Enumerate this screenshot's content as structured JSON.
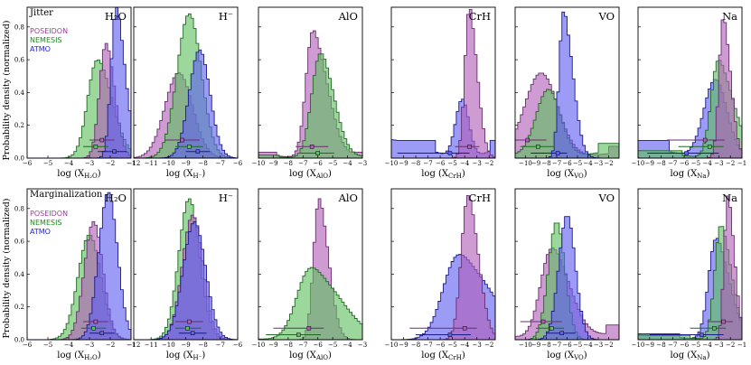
{
  "figure": {
    "ylabel": "Probability density (normalized)",
    "row_labels": [
      "Jitter",
      "Marginalization"
    ],
    "legend": [
      {
        "name": "POSEIDON",
        "color": "#9b3f9b"
      },
      {
        "name": "NEMESIS",
        "color": "#1b8a1b"
      },
      {
        "name": "ATMO",
        "color": "#2323cc"
      }
    ],
    "yticks": [
      "0.0",
      "0.2",
      "0.4",
      "0.6",
      "0.8"
    ],
    "colors": {
      "POSEIDON": "#b060b8",
      "NEMESIS": "#5fbf5f",
      "ATMO": "#5f5ff0",
      "POSEIDON_stroke": "#6a2c6e",
      "NEMESIS_stroke": "#1e6a1e",
      "ATMO_stroke": "#1a1a8a"
    }
  },
  "chart_data": [
    {
      "type": "histogram",
      "row": "Jitter",
      "title": "H₂O",
      "xlabel": "log (X",
      "xsub": "H₂O",
      "xlim": [
        -6,
        -1
      ],
      "xticks": [
        "−6",
        "−5",
        "−4",
        "−3",
        "−2",
        "−1"
      ],
      "series": [
        {
          "name": "NEMESIS",
          "mu": -2.6,
          "sigma": 0.55,
          "skew": -0.4,
          "peak": 0.6,
          "floor": 0
        },
        {
          "name": "POSEIDON",
          "mu": -2.2,
          "sigma": 0.35,
          "skew": -0.3,
          "peak": 0.7,
          "floor": 0
        },
        {
          "name": "ATMO",
          "mu": -1.7,
          "sigma": 0.3,
          "skew": -0.5,
          "peak": 0.92,
          "floor": 0
        }
      ],
      "errorbars": [
        {
          "name": "POSEIDON",
          "x": -2.4,
          "lo": -3.0,
          "hi": -1.8,
          "y": 0.11
        },
        {
          "name": "NEMESIS",
          "x": -2.7,
          "lo": -3.3,
          "hi": -2.1,
          "y": 0.07
        },
        {
          "name": "ATMO",
          "x": -1.8,
          "lo": -2.6,
          "hi": -1.2,
          "y": 0.04
        }
      ]
    },
    {
      "type": "histogram",
      "row": "Jitter",
      "title": "H⁻",
      "xlabel": "log (X",
      "xsub": "H⁻",
      "xlim": [
        -12,
        -6
      ],
      "xticks": [
        "−12",
        "−11",
        "−10",
        "−9",
        "−8",
        "−7",
        "−6"
      ],
      "series": [
        {
          "name": "POSEIDON",
          "mu": -9.4,
          "sigma": 0.8,
          "skew": 0,
          "peak": 0.52,
          "floor": 0
        },
        {
          "name": "NEMESIS",
          "mu": -8.8,
          "sigma": 0.7,
          "skew": 0,
          "peak": 0.88,
          "floor": 0
        },
        {
          "name": "ATMO",
          "mu": -8.2,
          "sigma": 0.6,
          "skew": 0,
          "peak": 0.66,
          "floor": 0
        }
      ],
      "errorbars": [
        {
          "name": "POSEIDON",
          "x": -9.2,
          "lo": -10.2,
          "hi": -8.2,
          "y": 0.11
        },
        {
          "name": "NEMESIS",
          "x": -8.8,
          "lo": -9.6,
          "hi": -8.0,
          "y": 0.07
        },
        {
          "name": "ATMO",
          "x": -8.3,
          "lo": -9.0,
          "hi": -7.6,
          "y": 0.04
        }
      ]
    },
    {
      "type": "histogram",
      "row": "Jitter",
      "title": "AlO",
      "xlabel": "log (X",
      "xsub": "AlO",
      "xlim": [
        -10,
        -3
      ],
      "xticks": [
        "−10",
        "−9",
        "−8",
        "−7",
        "−6",
        "−5",
        "−4",
        "−3"
      ],
      "series": [
        {
          "name": "POSEIDON",
          "mu": -6.3,
          "sigma": 0.6,
          "skew": -0.6,
          "peak": 0.78,
          "floor": 0.04
        },
        {
          "name": "NEMESIS",
          "mu": -5.8,
          "sigma": 0.7,
          "skew": -0.4,
          "peak": 0.64,
          "floor": 0.02
        }
      ],
      "errorbars": [
        {
          "name": "POSEIDON",
          "x": -6.4,
          "lo": -7.5,
          "hi": -5.3,
          "y": 0.07
        },
        {
          "name": "NEMESIS",
          "x": -6.0,
          "lo": -7.2,
          "hi": -4.9,
          "y": 0.03
        }
      ]
    },
    {
      "type": "histogram",
      "row": "Jitter",
      "title": "CrH",
      "xlabel": "log (X",
      "xsub": "CrH",
      "xlim": [
        -10,
        -1.5
      ],
      "xticks": [
        "−10",
        "−9",
        "−8",
        "−7",
        "−6",
        "−5",
        "−4",
        "−3",
        "−2"
      ],
      "series": [
        {
          "name": "ATMO",
          "mu": -4.2,
          "sigma": 0.55,
          "skew": 0,
          "peak": 0.36,
          "floor": 0.12
        },
        {
          "name": "POSEIDON",
          "mu": -3.6,
          "sigma": 0.45,
          "skew": -0.5,
          "peak": 0.92,
          "floor": 0
        }
      ],
      "errorbars": [
        {
          "name": "POSEIDON",
          "x": -3.6,
          "lo": -4.8,
          "hi": -2.8,
          "y": 0.07
        },
        {
          "name": "ATMO",
          "x": -5.2,
          "lo": -9.5,
          "hi": -3.6,
          "y": 0.03
        }
      ]
    },
    {
      "type": "histogram",
      "row": "Jitter",
      "title": "VO",
      "xlabel": "log (X",
      "xsub": "VO",
      "xlim": [
        -11,
        -1
      ],
      "xticks": [
        "−10",
        "−9",
        "−8",
        "−7",
        "−6",
        "−5",
        "−4",
        "−3",
        "−2"
      ],
      "series": [
        {
          "name": "POSEIDON",
          "mu": -8.5,
          "sigma": 1.6,
          "skew": 0,
          "peak": 0.52,
          "floor": 0.08
        },
        {
          "name": "NEMESIS",
          "mu": -7.8,
          "sigma": 1.2,
          "skew": 0,
          "peak": 0.42,
          "floor": 0.1
        },
        {
          "name": "ATMO",
          "mu": -6.3,
          "sigma": 0.55,
          "skew": -0.6,
          "peak": 0.9,
          "floor": 0
        }
      ],
      "errorbars": [
        {
          "name": "POSEIDON",
          "x": -9.8,
          "lo": -11,
          "hi": -8.0,
          "y": 0.11
        },
        {
          "name": "NEMESIS",
          "x": -8.8,
          "lo": -10.5,
          "hi": -7.2,
          "y": 0.07
        },
        {
          "name": "ATMO",
          "x": -6.9,
          "lo": -9.5,
          "hi": -6.0,
          "y": 0.03
        }
      ]
    },
    {
      "type": "histogram",
      "row": "Jitter",
      "title": "Na",
      "xlabel": "log (X",
      "xsub": "Na",
      "xlim": [
        -10,
        -1
      ],
      "xticks": [
        "−10",
        "−9",
        "−8",
        "−7",
        "−6",
        "−5",
        "−4",
        "−3",
        "−2",
        "−1"
      ],
      "series": [
        {
          "name": "ATMO",
          "mu": -3.3,
          "sigma": 1.0,
          "skew": 0,
          "peak": 0.48,
          "floor": 0.12
        },
        {
          "name": "NEMESIS",
          "mu": -3.0,
          "sigma": 0.8,
          "skew": -0.6,
          "peak": 0.6,
          "floor": 0.05
        },
        {
          "name": "POSEIDON",
          "mu": -2.6,
          "sigma": 0.45,
          "skew": -0.5,
          "peak": 0.86,
          "floor": 0
        }
      ],
      "errorbars": [
        {
          "name": "POSEIDON",
          "x": -4.2,
          "lo": -7.5,
          "hi": -2.5,
          "y": 0.11
        },
        {
          "name": "NEMESIS",
          "x": -3.8,
          "lo": -6.5,
          "hi": -2.6,
          "y": 0.07
        },
        {
          "name": "ATMO",
          "x": -5.8,
          "lo": -9.2,
          "hi": -3.0,
          "y": 0.03
        }
      ]
    },
    {
      "type": "histogram",
      "row": "Marginalization",
      "title": "H₂O",
      "xlabel": "log (X",
      "xsub": "H₂O",
      "xlim": [
        -6,
        -1
      ],
      "xticks": [
        "−6",
        "−5",
        "−4",
        "−3",
        "−2",
        "−1"
      ],
      "series": [
        {
          "name": "NEMESIS",
          "mu": -3.0,
          "sigma": 0.55,
          "skew": 0,
          "peak": 0.64,
          "floor": 0
        },
        {
          "name": "POSEIDON",
          "mu": -2.8,
          "sigma": 0.45,
          "skew": 0,
          "peak": 0.72,
          "floor": 0
        },
        {
          "name": "ATMO",
          "mu": -2.1,
          "sigma": 0.45,
          "skew": 0,
          "peak": 0.9,
          "floor": 0
        }
      ],
      "errorbars": [
        {
          "name": "POSEIDON",
          "x": -2.7,
          "lo": -3.3,
          "hi": -2.1,
          "y": 0.11
        },
        {
          "name": "NEMESIS",
          "x": -2.8,
          "lo": -3.4,
          "hi": -2.2,
          "y": 0.07
        },
        {
          "name": "ATMO",
          "x": -2.4,
          "lo": -3.0,
          "hi": -1.8,
          "y": 0.04
        }
      ]
    },
    {
      "type": "histogram",
      "row": "Marginalization",
      "title": "H⁻",
      "xlabel": "log (X",
      "xsub": "H⁻",
      "xlim": [
        -12,
        -6
      ],
      "xticks": [
        "−12",
        "−11",
        "−10",
        "−9",
        "−8",
        "−7",
        "−6"
      ],
      "series": [
        {
          "name": "NEMESIS",
          "mu": -8.8,
          "sigma": 0.6,
          "skew": 0,
          "peak": 0.86,
          "floor": 0
        },
        {
          "name": "POSEIDON",
          "mu": -8.6,
          "sigma": 0.6,
          "skew": 0,
          "peak": 0.76,
          "floor": 0
        },
        {
          "name": "ATMO",
          "mu": -8.5,
          "sigma": 0.65,
          "skew": 0,
          "peak": 0.72,
          "floor": 0
        }
      ],
      "errorbars": [
        {
          "name": "POSEIDON",
          "x": -8.8,
          "lo": -9.6,
          "hi": -8.0,
          "y": 0.11
        },
        {
          "name": "NEMESIS",
          "x": -8.9,
          "lo": -9.6,
          "hi": -8.1,
          "y": 0.07
        },
        {
          "name": "ATMO",
          "x": -8.6,
          "lo": -9.4,
          "hi": -7.8,
          "y": 0.04
        }
      ]
    },
    {
      "type": "histogram",
      "row": "Marginalization",
      "title": "AlO",
      "xlabel": "log (X",
      "xsub": "AlO",
      "xlim": [
        -10,
        -3
      ],
      "xticks": [
        "−10",
        "−9",
        "−8",
        "−7",
        "−6",
        "−5",
        "−4",
        "−3"
      ],
      "series": [
        {
          "name": "POSEIDON",
          "mu": -5.9,
          "sigma": 0.45,
          "skew": -0.5,
          "peak": 0.86,
          "floor": 0
        },
        {
          "name": "NEMESIS",
          "mu": -6.4,
          "sigma": 1.2,
          "skew": -0.6,
          "peak": 0.44,
          "floor": 0.02
        }
      ],
      "errorbars": [
        {
          "name": "POSEIDON",
          "x": -6.6,
          "lo": -9.0,
          "hi": -5.6,
          "y": 0.07
        },
        {
          "name": "NEMESIS",
          "x": -7.3,
          "lo": -9.5,
          "hi": -5.8,
          "y": 0.03
        }
      ]
    },
    {
      "type": "histogram",
      "row": "Marginalization",
      "title": "CrH",
      "xlabel": "log (X",
      "xsub": "CrH",
      "xlim": [
        -10,
        -1.5
      ],
      "xticks": [
        "−10",
        "−9",
        "−8",
        "−7",
        "−6",
        "−5",
        "−4",
        "−3",
        "−2"
      ],
      "series": [
        {
          "name": "ATMO",
          "mu": -4.4,
          "sigma": 1.6,
          "skew": -0.6,
          "peak": 0.52,
          "floor": 0
        },
        {
          "name": "POSEIDON",
          "mu": -3.7,
          "sigma": 0.65,
          "skew": -0.4,
          "peak": 0.88,
          "floor": 0
        }
      ],
      "errorbars": [
        {
          "name": "POSEIDON",
          "x": -4.0,
          "lo": -8.5,
          "hi": -3.0,
          "y": 0.07
        },
        {
          "name": "ATMO",
          "x": -5.2,
          "lo": -8.0,
          "hi": -3.5,
          "y": 0.03
        }
      ]
    },
    {
      "type": "histogram",
      "row": "Marginalization",
      "title": "VO",
      "xlabel": "log (X",
      "xsub": "VO",
      "xlim": [
        -11,
        -1
      ],
      "xticks": [
        "−10",
        "−9",
        "−8",
        "−7",
        "−6",
        "−5",
        "−4",
        "−3",
        "−2"
      ],
      "series": [
        {
          "name": "POSEIDON",
          "mu": -7.4,
          "sigma": 1.3,
          "skew": -0.4,
          "peak": 0.56,
          "floor": 0.1
        },
        {
          "name": "NEMESIS",
          "mu": -7.0,
          "sigma": 0.8,
          "skew": 0,
          "peak": 0.72,
          "floor": 0
        },
        {
          "name": "ATMO",
          "mu": -6.0,
          "sigma": 0.8,
          "skew": 0,
          "peak": 0.76,
          "floor": 0
        }
      ],
      "errorbars": [
        {
          "name": "POSEIDON",
          "x": -8.3,
          "lo": -10.5,
          "hi": -6.5,
          "y": 0.11
        },
        {
          "name": "NEMESIS",
          "x": -7.5,
          "lo": -9.0,
          "hi": -6.3,
          "y": 0.07
        },
        {
          "name": "ATMO",
          "x": -6.5,
          "lo": -8.0,
          "hi": -5.2,
          "y": 0.04
        }
      ]
    },
    {
      "type": "histogram",
      "row": "Marginalization",
      "title": "Na",
      "xlabel": "log (X",
      "xsub": "Na",
      "xlim": [
        -10,
        -1
      ],
      "xticks": [
        "−10",
        "−9",
        "−8",
        "−7",
        "−6",
        "−5",
        "−4",
        "−3",
        "−2",
        "−1"
      ],
      "series": [
        {
          "name": "ATMO",
          "mu": -3.2,
          "sigma": 0.8,
          "skew": -0.5,
          "peak": 0.62,
          "floor": 0.04
        },
        {
          "name": "NEMESIS",
          "mu": -2.8,
          "sigma": 0.65,
          "skew": -0.5,
          "peak": 0.7,
          "floor": 0.03
        },
        {
          "name": "POSEIDON",
          "mu": -2.2,
          "sigma": 0.4,
          "skew": -0.5,
          "peak": 0.88,
          "floor": 0
        }
      ],
      "errorbars": [
        {
          "name": "POSEIDON",
          "x": -2.6,
          "lo": -4.0,
          "hi": -1.8,
          "y": 0.11
        },
        {
          "name": "NEMESIS",
          "x": -3.4,
          "lo": -5.5,
          "hi": -2.4,
          "y": 0.07
        },
        {
          "name": "ATMO",
          "x": -4.5,
          "lo": -9.0,
          "hi": -2.6,
          "y": 0.03
        }
      ]
    }
  ]
}
